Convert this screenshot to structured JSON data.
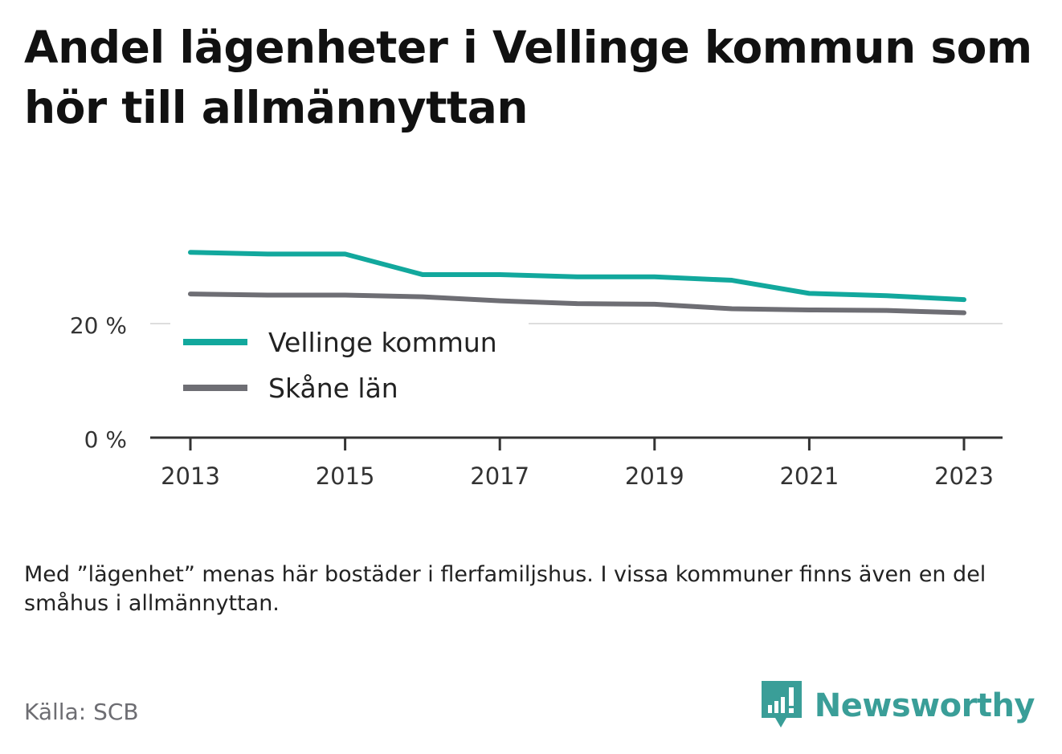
{
  "title": "Andel lägenheter i Vellinge kommun som hör till allmännyttan",
  "note": "Med ”lägenhet” menas här bostäder i flerfamiljshus. I vissa kommuner finns även en del småhus i allmännyttan.",
  "source": "Källa: SCB",
  "brand": "Newsworthy",
  "colors": {
    "vellinge": "#12a89d",
    "skane": "#6e6e74",
    "brand": "#3a9e98"
  },
  "chart_data": {
    "type": "line",
    "title": "Andel lägenheter i Vellinge kommun som hör till allmännyttan",
    "xlabel": "",
    "ylabel": "",
    "x": [
      2013,
      2014,
      2015,
      2016,
      2017,
      2018,
      2019,
      2020,
      2021,
      2022,
      2023
    ],
    "x_ticks": [
      "2013",
      "2015",
      "2017",
      "2019",
      "2021",
      "2023"
    ],
    "y_ticks": [
      "0 %",
      "20 %"
    ],
    "y_tick_values": [
      0,
      20
    ],
    "ylim": [
      0,
      40
    ],
    "grid": true,
    "legend": "inside, left",
    "series": [
      {
        "name": "Vellinge kommun",
        "values": [
          32.5,
          32.2,
          32.2,
          28.6,
          28.6,
          28.2,
          28.2,
          27.6,
          25.3,
          24.9,
          24.2
        ]
      },
      {
        "name": "Skåne län",
        "values": [
          25.2,
          25.0,
          25.0,
          24.7,
          24.0,
          23.5,
          23.4,
          22.6,
          22.4,
          22.3,
          21.9
        ]
      }
    ]
  }
}
